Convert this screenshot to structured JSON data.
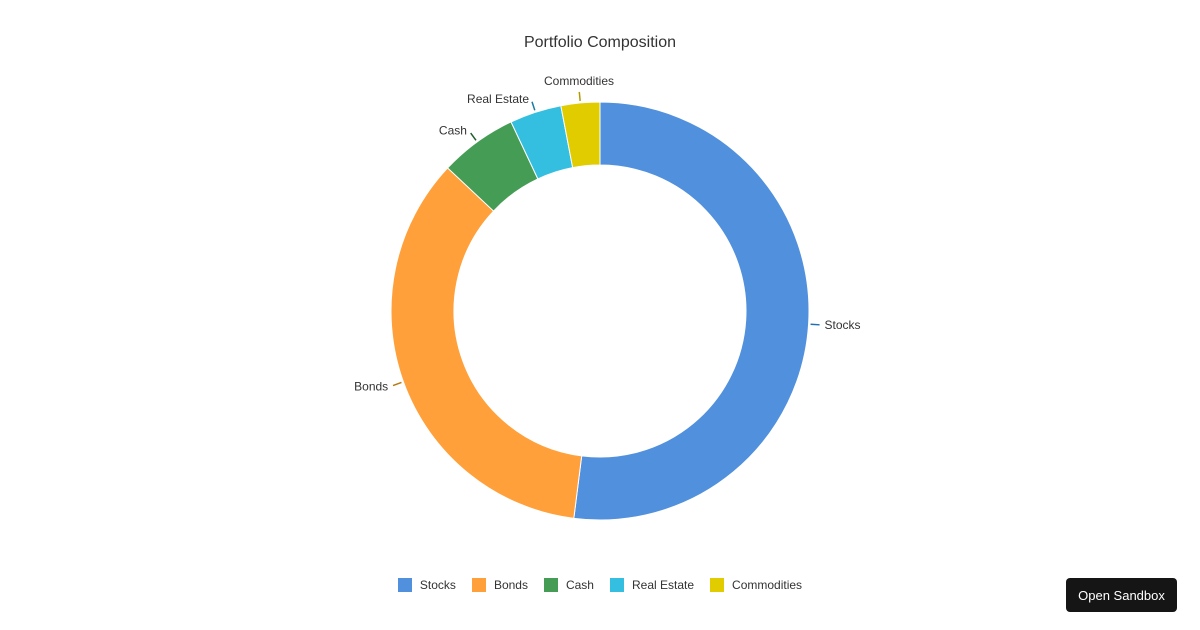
{
  "chart_data": {
    "type": "pie",
    "variant": "donut",
    "title": "Portfolio Composition",
    "categories": [
      "Stocks",
      "Bonds",
      "Cash",
      "Real Estate",
      "Commodities"
    ],
    "values": [
      52,
      35,
      6,
      4,
      3
    ],
    "unit": "%",
    "colors": [
      "#5090dc",
      "#ffa03a",
      "#459d55",
      "#34bfe1",
      "#e1cc00"
    ],
    "legend_position": "bottom",
    "labels_outside": true
  },
  "legend": [
    {
      "label": "Stocks",
      "color": "#5090dc"
    },
    {
      "label": "Bonds",
      "color": "#ffa03a"
    },
    {
      "label": "Cash",
      "color": "#459d55"
    },
    {
      "label": "Real Estate",
      "color": "#34bfe1"
    },
    {
      "label": "Commodities",
      "color": "#e1cc00"
    }
  ],
  "button": {
    "open_sandbox": "Open Sandbox"
  }
}
